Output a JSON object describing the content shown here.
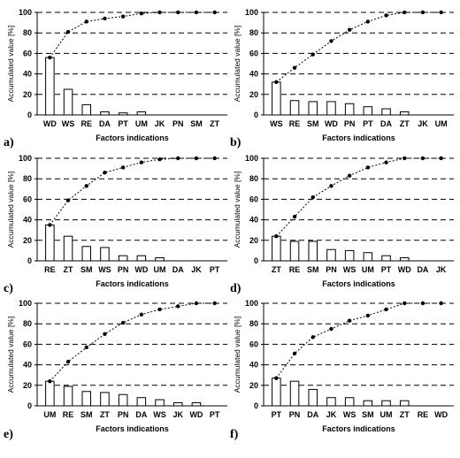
{
  "figure": {
    "x_axis_label": "Factors indications",
    "y_axis_label": "Accumulated value [%]"
  },
  "chart_data": [
    {
      "panel_label": "a)",
      "type": "bar",
      "categories": [
        "WD",
        "WS",
        "RE",
        "DA",
        "PT",
        "UM",
        "JK",
        "PN",
        "SM",
        "ZT"
      ],
      "series": [
        {
          "values": [
            56,
            25,
            10,
            3,
            2,
            3,
            0,
            0,
            0,
            0
          ]
        },
        {
          "type": "line",
          "values": [
            56,
            81,
            91,
            94,
            96,
            99,
            100,
            100,
            100,
            100
          ]
        }
      ],
      "xlabel": "Factors indications",
      "ylabel": "Accumulated value [%]",
      "ylim": [
        0,
        100
      ],
      "yticks": [
        0,
        20,
        40,
        60,
        80,
        100
      ],
      "grid": "dashed horizontal"
    },
    {
      "panel_label": "b)",
      "type": "bar",
      "categories": [
        "WS",
        "RE",
        "SM",
        "WD",
        "PN",
        "PT",
        "DA",
        "ZT",
        "JK",
        "UM"
      ],
      "series": [
        {
          "values": [
            32,
            14,
            13,
            13,
            11,
            8,
            6,
            3,
            0,
            0
          ]
        },
        {
          "type": "line",
          "values": [
            32,
            46,
            59,
            72,
            83,
            91,
            97,
            100,
            100,
            100
          ]
        }
      ],
      "xlabel": "Factors indications",
      "ylabel": "Accumulated value [%]",
      "ylim": [
        0,
        100
      ],
      "yticks": [
        0,
        20,
        40,
        60,
        80,
        100
      ],
      "grid": "dashed horizontal"
    },
    {
      "panel_label": "c)",
      "type": "bar",
      "categories": [
        "RE",
        "ZT",
        "SM",
        "WS",
        "PN",
        "WD",
        "UM",
        "DA",
        "JK",
        "PT"
      ],
      "series": [
        {
          "values": [
            35,
            24,
            14,
            13,
            5,
            5,
            3,
            0,
            0,
            0
          ]
        },
        {
          "type": "line",
          "values": [
            35,
            59,
            73,
            86,
            91,
            96,
            99,
            100,
            100,
            100
          ]
        }
      ],
      "xlabel": "Factors indications",
      "ylabel": "Accumulated value [%]",
      "ylim": [
        0,
        100
      ],
      "yticks": [
        0,
        20,
        40,
        60,
        80,
        100
      ],
      "grid": "dashed horizontal"
    },
    {
      "panel_label": "d)",
      "type": "bar",
      "categories": [
        "ZT",
        "RE",
        "SM",
        "PN",
        "WS",
        "UM",
        "PT",
        "WD",
        "DA",
        "JK"
      ],
      "series": [
        {
          "values": [
            24,
            19,
            19,
            11,
            10,
            8,
            5,
            3,
            0,
            0
          ]
        },
        {
          "type": "line",
          "values": [
            24,
            43,
            62,
            73,
            83,
            91,
            96,
            100,
            100,
            100
          ]
        }
      ],
      "xlabel": "Factors indications",
      "ylabel": "Accumulated value [%]",
      "ylim": [
        0,
        100
      ],
      "yticks": [
        0,
        20,
        40,
        60,
        80,
        100
      ],
      "grid": "dashed horizontal"
    },
    {
      "panel_label": "e)",
      "type": "bar",
      "categories": [
        "UM",
        "RE",
        "SM",
        "ZT",
        "PN",
        "DA",
        "WS",
        "JK",
        "WD",
        "PT"
      ],
      "series": [
        {
          "values": [
            24,
            19,
            14,
            13,
            11,
            8,
            6,
            3,
            3,
            0
          ]
        },
        {
          "type": "line",
          "values": [
            24,
            43,
            57,
            70,
            81,
            89,
            94,
            97,
            100,
            100
          ]
        }
      ],
      "xlabel": "Factors indications",
      "ylabel": "Accumulated value [%]",
      "ylim": [
        0,
        100
      ],
      "yticks": [
        0,
        20,
        40,
        60,
        80,
        100
      ],
      "grid": "dashed horizontal"
    },
    {
      "panel_label": "f)",
      "type": "bar",
      "categories": [
        "PT",
        "PN",
        "DA",
        "JK",
        "WS",
        "SM",
        "UM",
        "ZT",
        "RE",
        "WD"
      ],
      "series": [
        {
          "values": [
            27,
            24,
            16,
            8,
            8,
            5,
            5,
            5,
            0,
            0
          ]
        },
        {
          "type": "line",
          "values": [
            27,
            51,
            67,
            75,
            83,
            88,
            94,
            100,
            100,
            100
          ]
        }
      ],
      "xlabel": "Factors indications",
      "ylabel": "Accumulated value [%]",
      "ylim": [
        0,
        100
      ],
      "yticks": [
        0,
        20,
        40,
        60,
        80,
        100
      ],
      "grid": "dashed horizontal"
    }
  ]
}
